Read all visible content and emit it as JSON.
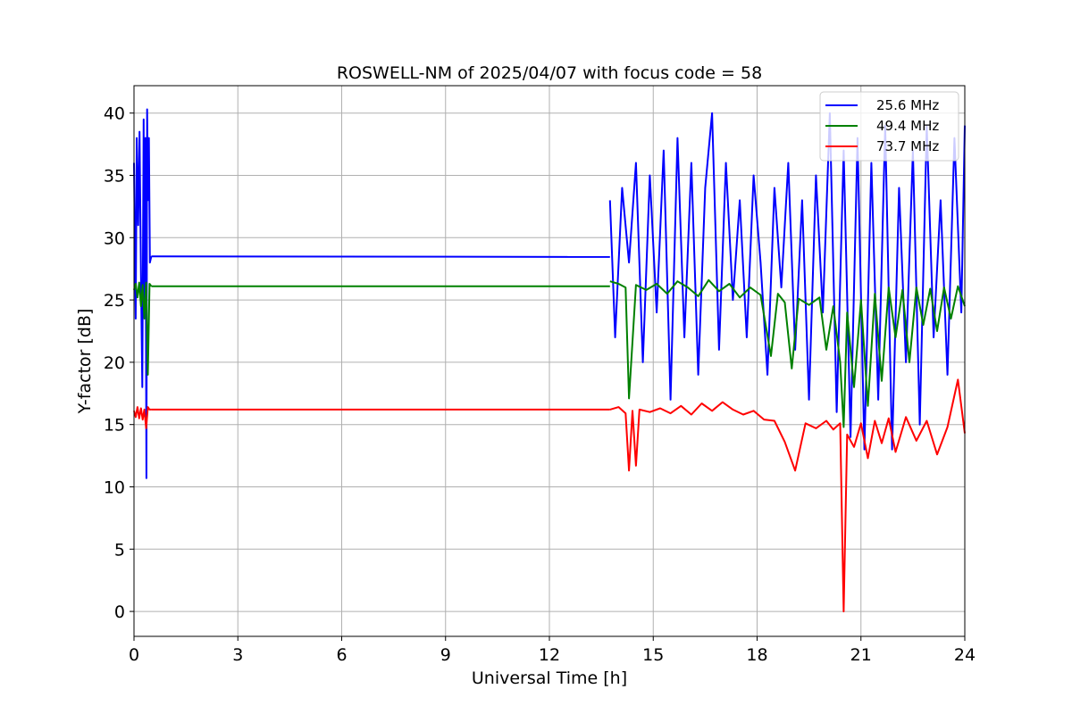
{
  "chart_data": {
    "type": "line",
    "title": "ROSWELL-NM of 2025/04/07 with focus code = 58",
    "xlabel": "Universal Time [h]",
    "ylabel": "Y-factor [dB]",
    "xlim": [
      0,
      24
    ],
    "ylim": [
      -2,
      42.2
    ],
    "xticks": [
      0,
      3,
      6,
      9,
      12,
      15,
      18,
      21,
      24
    ],
    "yticks": [
      0,
      5,
      10,
      15,
      20,
      25,
      30,
      35,
      40
    ],
    "grid": true,
    "legend_position": "top-right",
    "series": [
      {
        "name": "25.6 MHz",
        "color": "#0000ff",
        "segments": [
          {
            "x": [
              0,
              0.05,
              0.08,
              0.12,
              0.16,
              0.2,
              0.24,
              0.28,
              0.3,
              0.33,
              0.36,
              0.38,
              0.4,
              0.43,
              0.46,
              0.5,
              0.5
            ],
            "y": [
              36,
              23.5,
              38,
              31,
              38.5,
              27,
              18,
              39.5,
              25,
              38,
              10.7,
              40.3,
              33,
              38,
              28,
              28.5,
              28.5
            ]
          },
          {
            "x": [
              0.5,
              13.75
            ],
            "y": [
              28.5,
              28.45
            ]
          },
          {
            "x": [
              13.75,
              13.9,
              14.1,
              14.3,
              14.5,
              14.7,
              14.9,
              15.1,
              15.3,
              15.5,
              15.7,
              15.9,
              16.1,
              16.3,
              16.5,
              16.7,
              16.9,
              17.1,
              17.3,
              17.5,
              17.7,
              17.9,
              18.1,
              18.3,
              18.5,
              18.7,
              18.9,
              19.1,
              19.3,
              19.5,
              19.7,
              19.9,
              20.1,
              20.3,
              20.5,
              20.7,
              20.9,
              21.1,
              21.3,
              21.5,
              21.7,
              21.9,
              22.1,
              22.3,
              22.5,
              22.7,
              22.9,
              23.1,
              23.3,
              23.5,
              23.7,
              23.9,
              24.0
            ],
            "y": [
              33,
              22,
              34,
              28,
              36,
              20,
              35,
              24,
              37,
              17,
              38,
              22,
              36,
              19,
              34,
              40,
              21,
              36,
              25,
              33,
              22,
              35,
              28,
              19,
              34,
              26,
              36,
              21,
              33,
              17,
              35,
              24,
              40,
              16,
              37,
              14,
              38,
              13,
              36,
              17,
              39,
              13,
              34,
              20,
              37,
              15,
              39,
              22,
              33,
              19,
              38,
              24,
              39
            ]
          }
        ]
      },
      {
        "name": "49.4 MHz",
        "color": "#008000",
        "segments": [
          {
            "x": [
              0,
              0.05,
              0.1,
              0.15,
              0.2,
              0.25,
              0.3,
              0.35,
              0.4,
              0.45,
              0.5
            ],
            "y": [
              25.8,
              26.3,
              25.2,
              26.4,
              24.5,
              26.2,
              23.5,
              26.4,
              19,
              26.3,
              26.1
            ]
          },
          {
            "x": [
              0.5,
              13.75
            ],
            "y": [
              26.1,
              26.1
            ]
          },
          {
            "x": [
              13.75,
              14.0,
              14.2,
              14.3,
              14.5,
              14.8,
              15.1,
              15.4,
              15.7,
              16.0,
              16.3,
              16.6,
              16.9,
              17.2,
              17.5,
              17.8,
              18.1,
              18.4,
              18.6,
              18.8,
              19.0,
              19.2,
              19.5,
              19.8,
              20.0,
              20.2,
              20.4,
              20.5,
              20.6,
              20.8,
              21.0,
              21.2,
              21.4,
              21.6,
              21.8,
              22.0,
              22.2,
              22.4,
              22.6,
              22.8,
              23.0,
              23.2,
              23.4,
              23.6,
              23.8,
              24.0
            ],
            "y": [
              26.5,
              26.3,
              26,
              17.1,
              26.2,
              25.8,
              26.3,
              25.5,
              26.5,
              26,
              25.3,
              26.6,
              25.7,
              26.3,
              25.2,
              26,
              25.4,
              20.5,
              25.5,
              24.8,
              19.5,
              25.1,
              24.6,
              25.2,
              21,
              24.5,
              20,
              14.8,
              24,
              18,
              25,
              16.5,
              25.5,
              18.5,
              26,
              22,
              25.8,
              20,
              26,
              23,
              25.9,
              22.5,
              26,
              23.5,
              26.1,
              24.5
            ]
          }
        ]
      },
      {
        "name": "73.7 MHz",
        "color": "#ff0000",
        "segments": [
          {
            "x": [
              0,
              0.05,
              0.1,
              0.15,
              0.2,
              0.25,
              0.3,
              0.35,
              0.4,
              0.45,
              0.5
            ],
            "y": [
              16.1,
              15.6,
              16.4,
              15.5,
              16.3,
              15.4,
              16.2,
              14.7,
              16.4,
              16.2,
              16.2
            ]
          },
          {
            "x": [
              0.5,
              13.75
            ],
            "y": [
              16.2,
              16.2
            ]
          },
          {
            "x": [
              13.75,
              14.0,
              14.2,
              14.3,
              14.4,
              14.5,
              14.6,
              14.9,
              15.2,
              15.5,
              15.8,
              16.1,
              16.4,
              16.7,
              17.0,
              17.3,
              17.6,
              17.9,
              18.2,
              18.5,
              18.8,
              19.1,
              19.4,
              19.7,
              20.0,
              20.2,
              20.4,
              20.5,
              20.6,
              20.8,
              21.0,
              21.2,
              21.4,
              21.6,
              21.8,
              22.0,
              22.3,
              22.6,
              22.9,
              23.2,
              23.5,
              23.8,
              24.0
            ],
            "y": [
              16.2,
              16.4,
              15.9,
              11.3,
              16.1,
              11.7,
              16.2,
              16,
              16.3,
              15.9,
              16.5,
              15.8,
              16.7,
              16.1,
              16.8,
              16.2,
              15.8,
              16.1,
              15.4,
              15.3,
              13.6,
              11.3,
              15.1,
              14.7,
              15.3,
              14.6,
              15.1,
              0,
              14.2,
              13.2,
              15.1,
              12.3,
              15.3,
              13.5,
              15.5,
              12.8,
              15.6,
              13.7,
              15.3,
              12.6,
              14.8,
              18.6,
              14.3
            ]
          }
        ]
      }
    ]
  }
}
